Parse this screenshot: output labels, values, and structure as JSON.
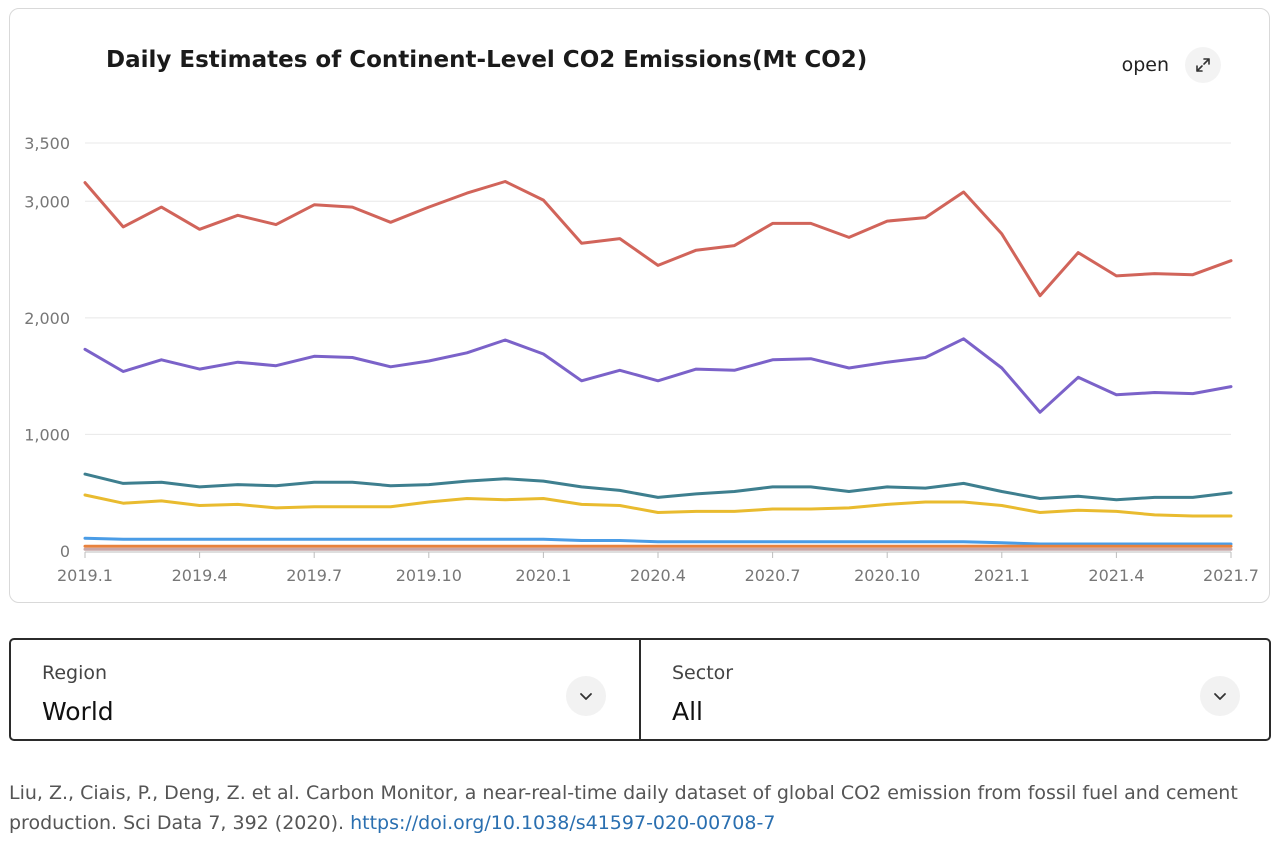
{
  "chart_card": {
    "title": "Daily Estimates of Continent-Level CO2 Emissions(Mt CO2)",
    "open_label": "open",
    "open_icon": "external-expand-icon"
  },
  "chart_data": {
    "type": "line",
    "title": "Daily Estimates of Continent-Level CO2 Emissions(Mt CO2)",
    "xlabel": "",
    "ylabel": "",
    "ylim": [
      0,
      3500
    ],
    "yticks": [
      0,
      1000,
      2000,
      3000,
      3500
    ],
    "ytick_labels": [
      "0",
      "1,000",
      "2,000",
      "3,000",
      "3,500"
    ],
    "xtick_labels": [
      "2019.1",
      "2019.4",
      "2019.7",
      "2019.10",
      "2020.1",
      "2020.4",
      "2020.7",
      "2020.10",
      "2021.1",
      "2021.4",
      "2021.7"
    ],
    "x": [
      "2019.1",
      "2019.2",
      "2019.3",
      "2019.4",
      "2019.5",
      "2019.6",
      "2019.7",
      "2019.8",
      "2019.9",
      "2019.10",
      "2019.11",
      "2019.12",
      "2020.1",
      "2020.2",
      "2020.3",
      "2020.4",
      "2020.5",
      "2020.6",
      "2020.7",
      "2020.8",
      "2020.9",
      "2020.10",
      "2020.11",
      "2020.12",
      "2021.1",
      "2021.2",
      "2021.3",
      "2021.4",
      "2021.5",
      "2021.6",
      "2021.7"
    ],
    "grid": true,
    "legend": "none",
    "series": [
      {
        "color": "#d1645a",
        "values": [
          3160,
          2780,
          2950,
          2760,
          2880,
          2800,
          2970,
          2950,
          2820,
          2950,
          3070,
          3170,
          3010,
          2640,
          2680,
          2450,
          2580,
          2620,
          2810,
          2810,
          2690,
          2830,
          2860,
          3080,
          2720,
          2190,
          2560,
          2360,
          2380,
          2370,
          2490
        ]
      },
      {
        "color": "#7b62c9",
        "values": [
          1730,
          1540,
          1640,
          1560,
          1620,
          1590,
          1670,
          1660,
          1580,
          1630,
          1700,
          1810,
          1690,
          1460,
          1550,
          1460,
          1560,
          1550,
          1640,
          1650,
          1570,
          1620,
          1660,
          1820,
          1570,
          1190,
          1490,
          1340,
          1360,
          1350,
          1410
        ]
      },
      {
        "color": "#3e7f8f",
        "values": [
          660,
          580,
          590,
          550,
          570,
          560,
          590,
          590,
          560,
          570,
          600,
          620,
          600,
          550,
          520,
          460,
          490,
          510,
          550,
          550,
          510,
          550,
          540,
          580,
          510,
          450,
          470,
          440,
          460,
          460,
          500
        ]
      },
      {
        "color": "#e9bb2f",
        "values": [
          480,
          410,
          430,
          390,
          400,
          370,
          380,
          380,
          380,
          420,
          450,
          440,
          450,
          400,
          390,
          330,
          340,
          340,
          360,
          360,
          370,
          400,
          420,
          420,
          390,
          330,
          350,
          340,
          310,
          300,
          300
        ]
      },
      {
        "color": "#4a9ce6",
        "values": [
          110,
          100,
          100,
          100,
          100,
          100,
          100,
          100,
          100,
          100,
          100,
          100,
          100,
          90,
          90,
          80,
          80,
          80,
          80,
          80,
          80,
          80,
          80,
          80,
          70,
          60,
          60,
          60,
          60,
          60,
          60
        ]
      },
      {
        "color": "#e8823d",
        "values": [
          40,
          40,
          40,
          40,
          40,
          40,
          40,
          40,
          40,
          40,
          40,
          40,
          40,
          40,
          40,
          40,
          40,
          40,
          40,
          40,
          40,
          40,
          40,
          40,
          40,
          40,
          40,
          40,
          40,
          40,
          40
        ]
      },
      {
        "color": "#c9a7a7",
        "values": [
          15,
          15,
          15,
          15,
          15,
          15,
          15,
          15,
          15,
          15,
          15,
          15,
          15,
          15,
          15,
          15,
          15,
          15,
          15,
          15,
          15,
          15,
          15,
          15,
          15,
          15,
          15,
          15,
          15,
          15,
          15
        ]
      }
    ]
  },
  "filters": {
    "region": {
      "label": "Region",
      "value": "World",
      "icon": "chevron-down-icon"
    },
    "sector": {
      "label": "Sector",
      "value": "All",
      "icon": "chevron-down-icon"
    }
  },
  "citation": {
    "text": "Liu, Z., Ciais, P., Deng, Z. et al. Carbon Monitor, a near-real-time daily dataset of global CO2 emission from fossil fuel and cement production. Sci Data 7, 392 (2020). ",
    "link_text": "https://doi.org/10.1038/s41597-020-00708-7"
  }
}
